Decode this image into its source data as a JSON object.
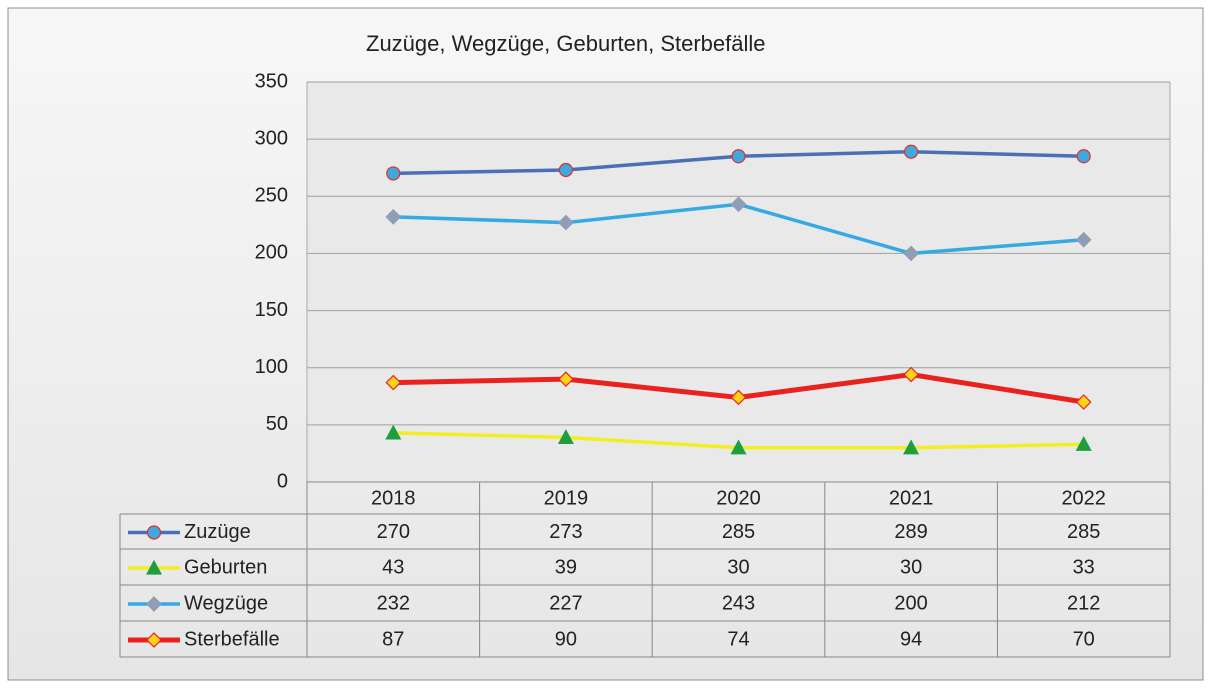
{
  "chart_data": {
    "type": "line",
    "title": "Zuzüge, Wegzüge, Geburten, Sterbefälle",
    "categories": [
      "2018",
      "2019",
      "2020",
      "2021",
      "2022"
    ],
    "series": [
      {
        "name": "Zuzüge",
        "color": "#4a6fb8",
        "marker": "circle",
        "marker_color": "#3fa9df",
        "marker_edge": "#e0302a",
        "values": [
          270,
          273,
          285,
          289,
          285
        ]
      },
      {
        "name": "Geburten",
        "color": "#f2ee22",
        "marker": "triangle",
        "marker_color": "#1e9e3e",
        "marker_edge": "#1e9e3e",
        "values": [
          43,
          39,
          30,
          30,
          33
        ]
      },
      {
        "name": "Wegzüge",
        "color": "#35a9e2",
        "marker": "diamond",
        "marker_color": "#8f9db5",
        "marker_edge": "#8f9db5",
        "values": [
          232,
          227,
          243,
          200,
          212
        ]
      },
      {
        "name": "Sterbefälle",
        "color": "#e8231f",
        "marker": "diamond",
        "marker_color": "#ffd21a",
        "marker_edge": "#e8231f",
        "values": [
          87,
          90,
          74,
          94,
          70
        ]
      }
    ],
    "ylim": [
      0,
      350
    ],
    "yticks": [
      0,
      50,
      100,
      150,
      200,
      250,
      300,
      350
    ],
    "grid": true,
    "data_table": true
  }
}
